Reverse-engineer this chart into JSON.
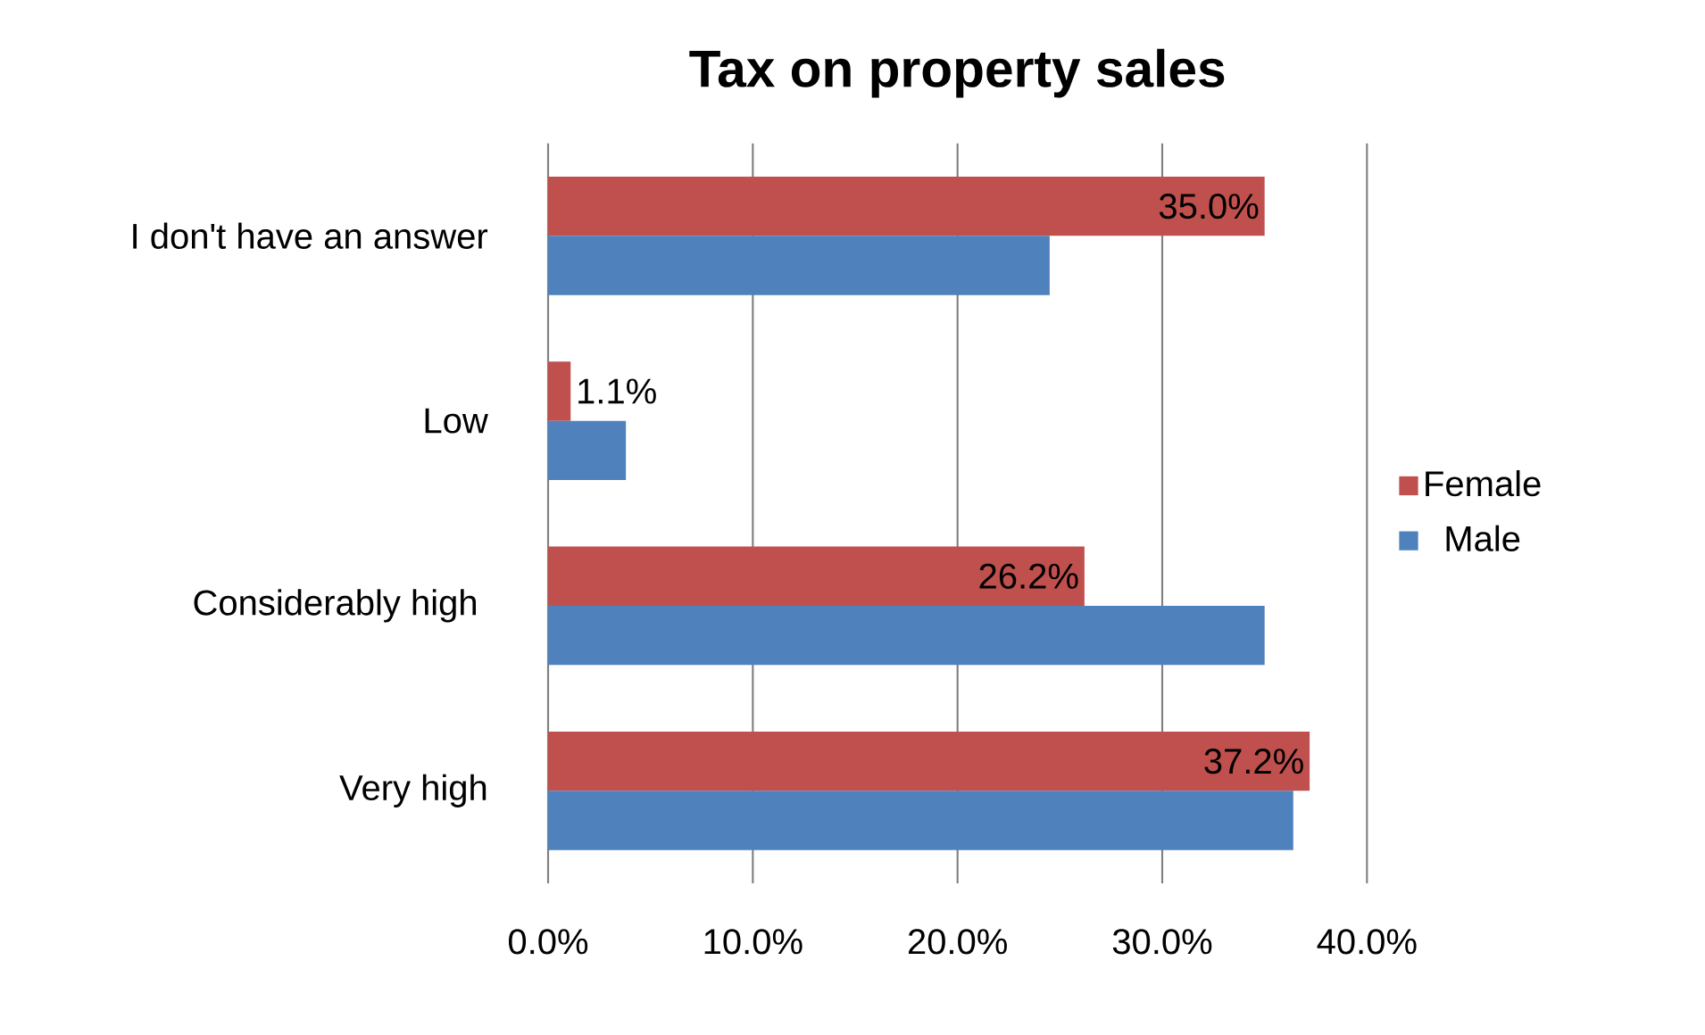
{
  "chart_data": {
    "type": "bar",
    "orientation": "horizontal",
    "title": "Tax on property sales",
    "categories": [
      "I don't have an answer",
      "Low",
      "Considerably high ",
      "Very high"
    ],
    "series": [
      {
        "name": "Female",
        "color": "#c0504d",
        "values": [
          35.0,
          1.1,
          26.2,
          37.2
        ],
        "value_labels": [
          "35.0%",
          "1.1%",
          "26.2%",
          "37.2%"
        ]
      },
      {
        "name": "Male",
        "color": "#4f81bd",
        "values": [
          24.5,
          3.8,
          35.0,
          36.4
        ]
      }
    ],
    "xlim": [
      0,
      40
    ],
    "xticks": [
      {
        "value": 0,
        "label": "0.0%"
      },
      {
        "value": 10,
        "label": "10.0%"
      },
      {
        "value": 20,
        "label": "20.0%"
      },
      {
        "value": 30,
        "label": "30.0%"
      },
      {
        "value": 40,
        "label": "40.0%"
      }
    ],
    "grid": "x",
    "legend": "right"
  }
}
